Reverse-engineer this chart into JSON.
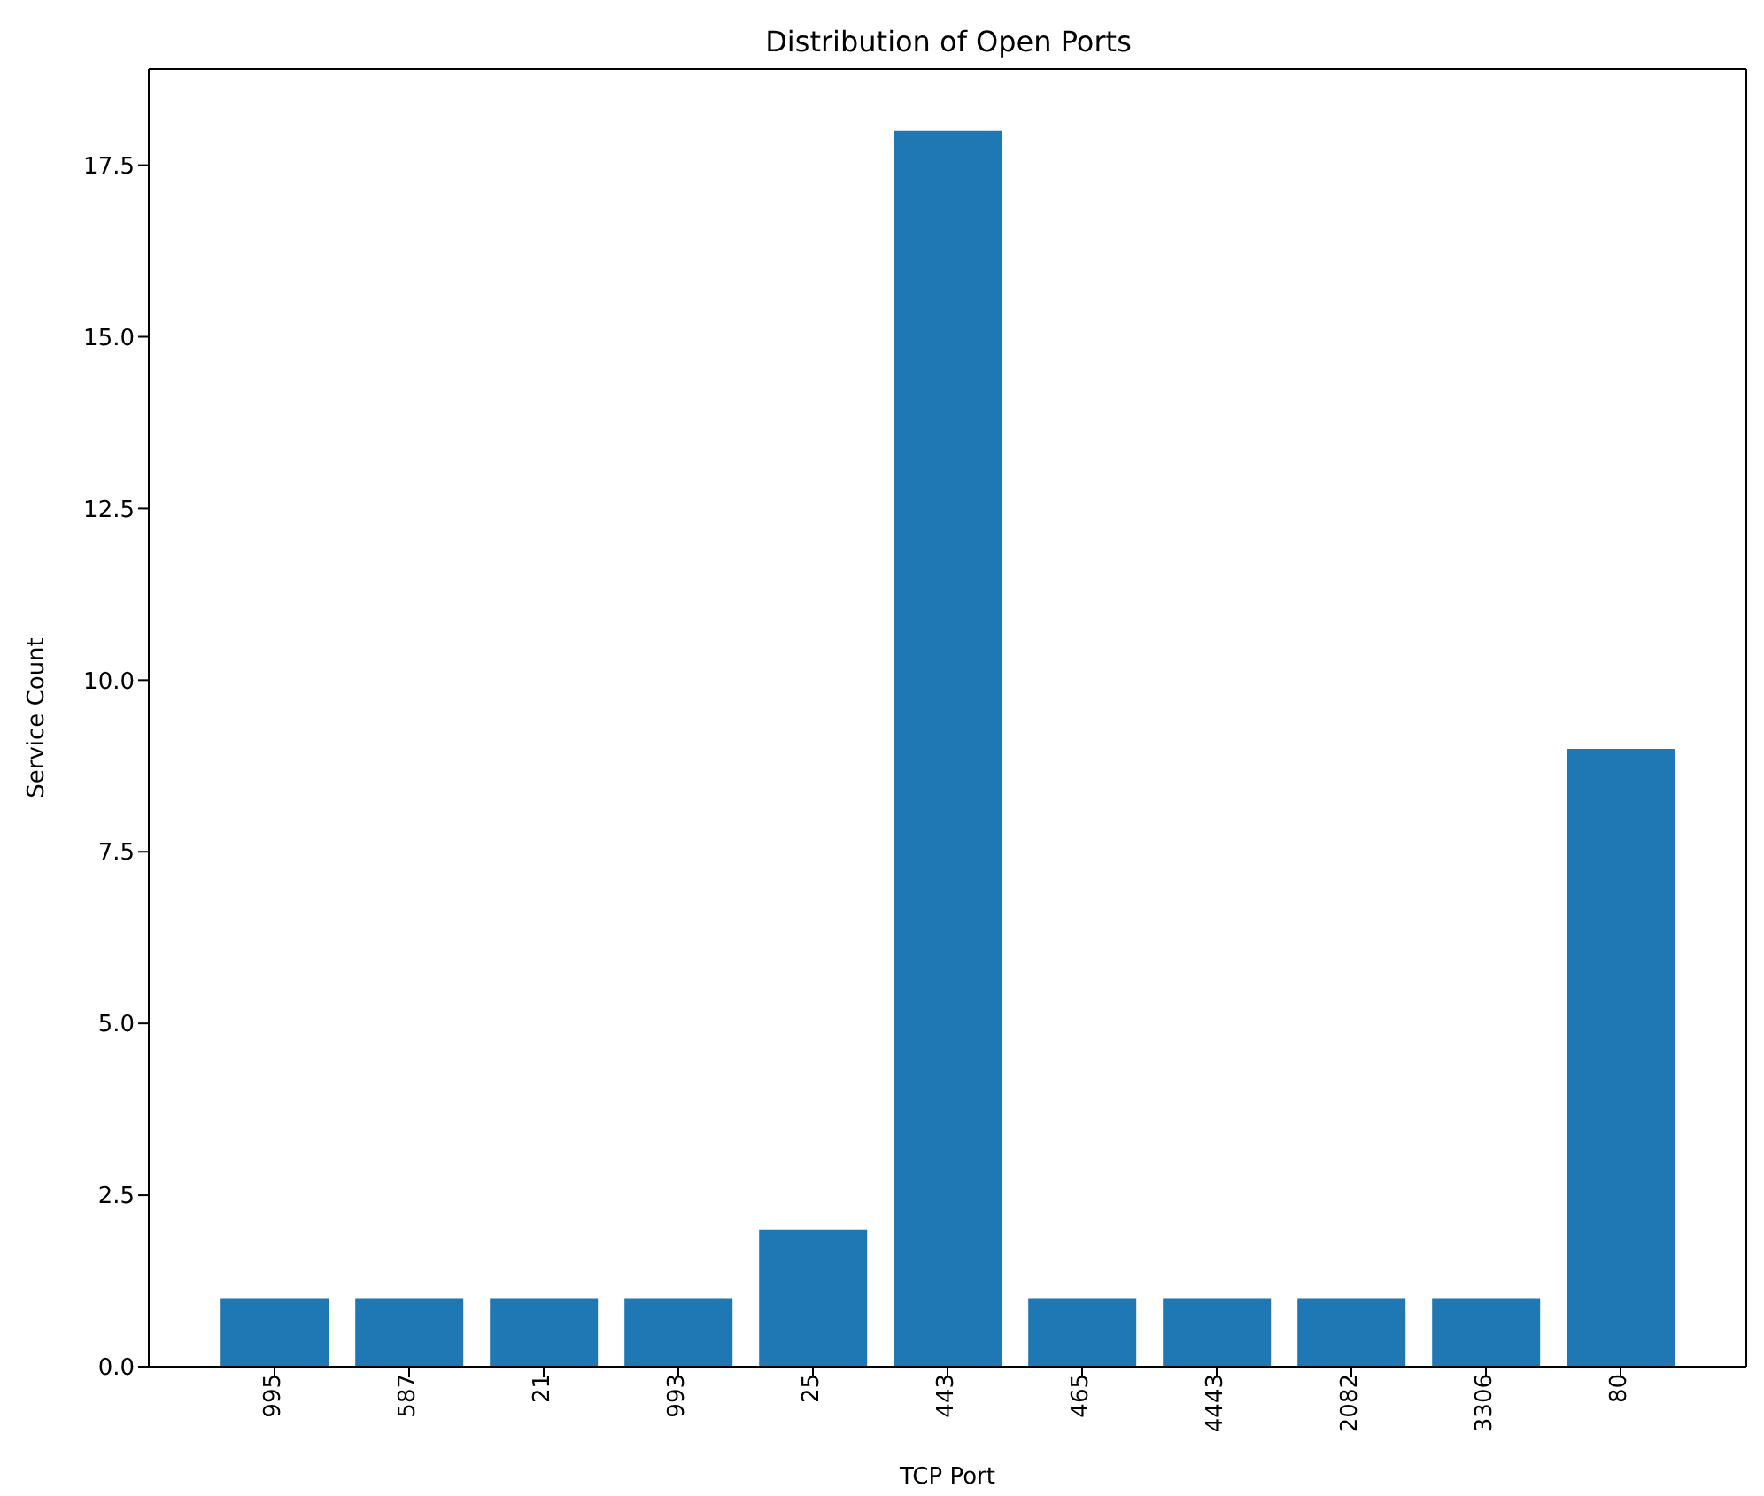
{
  "chart_data": {
    "type": "bar",
    "title": "Distribution of Open Ports",
    "xlabel": "TCP Port",
    "ylabel": "Service Count",
    "categories": [
      "995",
      "587",
      "21",
      "993",
      "25",
      "443",
      "465",
      "4443",
      "2082",
      "3306",
      "80"
    ],
    "values": [
      1,
      1,
      1,
      1,
      2,
      18,
      1,
      1,
      1,
      1,
      9
    ],
    "color": "#1f77b4",
    "ylim": [
      0,
      18.9
    ],
    "yticks": [
      {
        "value": 0,
        "label": "0.0"
      },
      {
        "value": 2.5,
        "label": "2.5"
      },
      {
        "value": 5,
        "label": "5.0"
      },
      {
        "value": 7.5,
        "label": "7.5"
      },
      {
        "value": 10,
        "label": "10.0"
      },
      {
        "value": 12.5,
        "label": "12.5"
      },
      {
        "value": 15,
        "label": "15.0"
      },
      {
        "value": 17.5,
        "label": "17.5"
      }
    ],
    "grid": false,
    "legend": false
  }
}
